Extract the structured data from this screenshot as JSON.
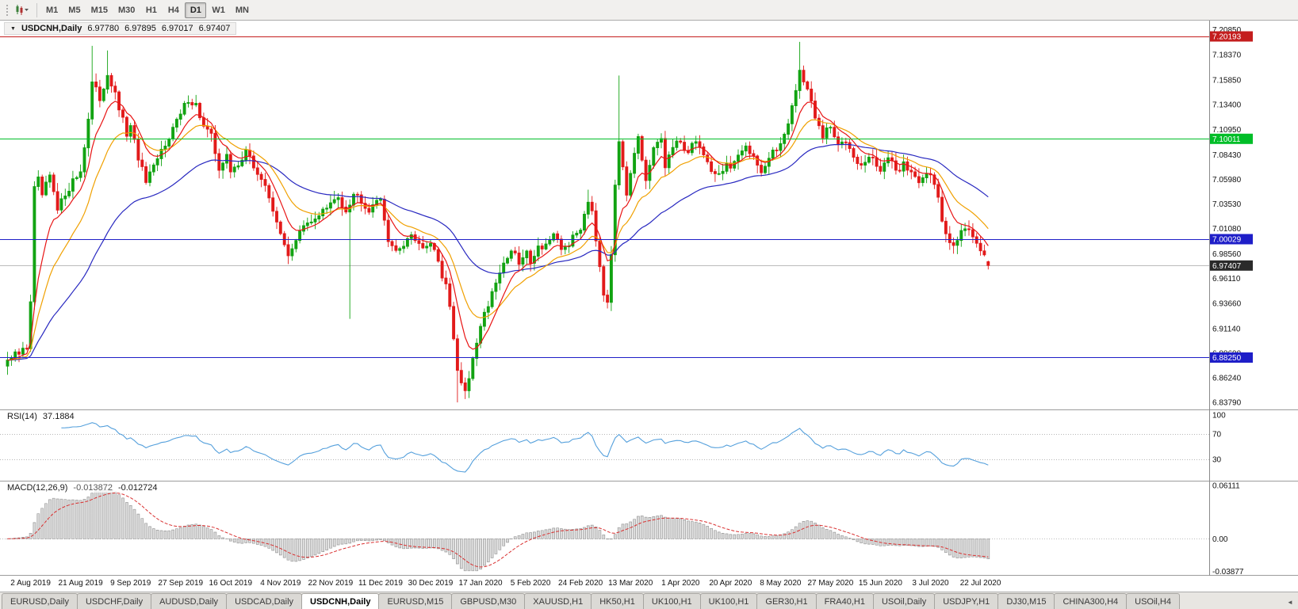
{
  "toolbar": {
    "timeframes": [
      {
        "label": "M1",
        "active": false
      },
      {
        "label": "M5",
        "active": false
      },
      {
        "label": "M15",
        "active": false
      },
      {
        "label": "M30",
        "active": false
      },
      {
        "label": "H1",
        "active": false
      },
      {
        "label": "H4",
        "active": false
      },
      {
        "label": "D1",
        "active": true
      },
      {
        "label": "W1",
        "active": false
      },
      {
        "label": "MN",
        "active": false
      }
    ]
  },
  "chart_header": {
    "dropdown_glyph": "▼",
    "symbol_label": "USDCNH,Daily",
    "open": "6.97780",
    "high": "6.97895",
    "low": "6.97017",
    "close": "6.97407"
  },
  "price_axis_labels": [
    "7.20850",
    "7.18370",
    "7.15850",
    "7.13400",
    "7.10950",
    "7.08430",
    "7.05980",
    "7.03530",
    "7.01080",
    "6.98560",
    "6.96110",
    "6.93660",
    "6.91140",
    "6.88690",
    "6.86240",
    "6.83790"
  ],
  "hlines": [
    {
      "value": 7.20193,
      "label": "7.20193",
      "color": "#C41E1E"
    },
    {
      "value": 7.10011,
      "label": "7.10011",
      "color": "#00BE28"
    },
    {
      "value": 7.00029,
      "label": "7.00029",
      "color": "#1E1EC8"
    },
    {
      "value": 6.8825,
      "label": "6.88250",
      "color": "#1E1EC8"
    }
  ],
  "bid": {
    "value": 6.97407,
    "label": "6.97407"
  },
  "rsi_panel": {
    "name": "RSI(14)",
    "value": "37.1884",
    "levels": [
      {
        "label": "100",
        "value": 100,
        "line": false
      },
      {
        "label": "70",
        "value": 70,
        "line": true
      },
      {
        "label": "30",
        "value": 30,
        "line": true
      }
    ]
  },
  "macd_panel": {
    "name": "MACD(12,26,9)",
    "main_value": "-0.013872",
    "signal_value": "-0.012724",
    "levels": [
      {
        "label": "0.06111",
        "value": 0.06111
      },
      {
        "label": "0.00",
        "value": 0.0
      },
      {
        "label": "-0.03877",
        "value": -0.03877
      }
    ]
  },
  "date_axis": [
    "2 Aug 2019",
    "21 Aug 2019",
    "9 Sep 2019",
    "27 Sep 2019",
    "16 Oct 2019",
    "4 Nov 2019",
    "22 Nov 2019",
    "11 Dec 2019",
    "30 Dec 2019",
    "17 Jan 2020",
    "5 Feb 2020",
    "24 Feb 2020",
    "13 Mar 2020",
    "1 Apr 2020",
    "20 Apr 2020",
    "8 May 2020",
    "27 May 2020",
    "15 Jun 2020",
    "3 Jul 2020",
    "22 Jul 2020"
  ],
  "tabbar": {
    "scroll_left_glyph": "◄",
    "tabs": [
      {
        "label": "EURUSD,Daily",
        "active": false
      },
      {
        "label": "USDCHF,Daily",
        "active": false
      },
      {
        "label": "AUDUSD,Daily",
        "active": false
      },
      {
        "label": "USDCAD,Daily",
        "active": false
      },
      {
        "label": "USDCNH,Daily",
        "active": true
      },
      {
        "label": "EURUSD,M15",
        "active": false
      },
      {
        "label": "GBPUSD,M30",
        "active": false
      },
      {
        "label": "XAUUSD,H1",
        "active": false
      },
      {
        "label": "HK50,H1",
        "active": false
      },
      {
        "label": "UK100,H1",
        "active": false
      },
      {
        "label": "UK100,H1",
        "active": false
      },
      {
        "label": "GER30,H1",
        "active": false
      },
      {
        "label": "FRA40,H1",
        "active": false
      },
      {
        "label": "USOil,Daily",
        "active": false
      },
      {
        "label": "USDJPY,H1",
        "active": false
      },
      {
        "label": "DJ30,M15",
        "active": false
      },
      {
        "label": "CHINA300,H4",
        "active": false
      },
      {
        "label": "USOil,H4",
        "active": false
      }
    ]
  },
  "colors": {
    "candle_up": "#12A312",
    "candle_down": "#E21B1B",
    "rsi_line": "#55A0DC",
    "macd_hist_fill": "#DCDCDC",
    "macd_hist_stroke": "#9A9A9A",
    "macd_signal": "#D93030",
    "bid_line": "#BBBBBB",
    "bid_badge": "#2A2A2A",
    "background": "#FFFFFF"
  },
  "chart_data": {
    "type": "candlestick",
    "title": "USDCNH,Daily",
    "symbol": "USDCNH",
    "period": "Daily",
    "n_candles": 256,
    "price_min": 6.8309,
    "price_max": 7.2177,
    "x_tick_labels": [
      "2 Aug 2019",
      "21 Aug 2019",
      "9 Sep 2019",
      "27 Sep 2019",
      "16 Oct 2019",
      "4 Nov 2019",
      "22 Nov 2019",
      "11 Dec 2019",
      "30 Dec 2019",
      "17 Jan 2020",
      "5 Feb 2020",
      "24 Feb 2020",
      "13 Mar 2020",
      "1 Apr 2020",
      "20 Apr 2020",
      "8 May 2020",
      "27 May 2020",
      "15 Jun 2020",
      "3 Jul 2020",
      "22 Jul 2020"
    ],
    "y_tick_labels": [
      "7.20850",
      "7.18370",
      "7.15850",
      "7.13400",
      "7.10950",
      "7.08430",
      "7.05980",
      "7.03530",
      "7.01080",
      "6.98560",
      "6.96110",
      "6.93660",
      "6.91140",
      "6.88690",
      "6.86240",
      "6.83790"
    ],
    "last": {
      "open": 6.9778,
      "high": 6.97895,
      "low": 6.97017,
      "close": 6.97407
    },
    "close_anchors": [
      [
        0,
        6.88
      ],
      [
        3,
        6.886
      ],
      [
        5,
        6.893
      ],
      [
        6,
        6.94
      ],
      [
        7,
        7.05
      ],
      [
        8,
        7.058
      ],
      [
        9,
        7.044
      ],
      [
        11,
        7.062
      ],
      [
        13,
        7.028
      ],
      [
        15,
        7.046
      ],
      [
        17,
        7.058
      ],
      [
        19,
        7.068
      ],
      [
        21,
        7.12
      ],
      [
        22,
        7.155
      ],
      [
        24,
        7.14
      ],
      [
        26,
        7.165
      ],
      [
        27,
        7.155
      ],
      [
        29,
        7.13
      ],
      [
        31,
        7.105
      ],
      [
        32,
        7.11
      ],
      [
        34,
        7.082
      ],
      [
        36,
        7.056
      ],
      [
        38,
        7.07
      ],
      [
        40,
        7.088
      ],
      [
        42,
        7.104
      ],
      [
        45,
        7.124
      ],
      [
        47,
        7.14
      ],
      [
        49,
        7.134
      ],
      [
        51,
        7.112
      ],
      [
        53,
        7.102
      ],
      [
        55,
        7.072
      ],
      [
        57,
        7.082
      ],
      [
        58,
        7.066
      ],
      [
        60,
        7.076
      ],
      [
        62,
        7.088
      ],
      [
        64,
        7.072
      ],
      [
        66,
        7.06
      ],
      [
        68,
        7.042
      ],
      [
        70,
        7.02
      ],
      [
        71,
        7.002
      ],
      [
        73,
        6.986
      ],
      [
        75,
        7.0
      ],
      [
        77,
        7.012
      ],
      [
        79,
        7.016
      ],
      [
        81,
        7.026
      ],
      [
        84,
        7.034
      ],
      [
        86,
        7.042
      ],
      [
        88,
        7.03
      ],
      [
        90,
        7.046
      ],
      [
        92,
        7.04
      ],
      [
        94,
        7.03
      ],
      [
        96,
        7.042
      ],
      [
        97,
        7.036
      ],
      [
        99,
        7.002
      ],
      [
        101,
        6.986
      ],
      [
        103,
        6.996
      ],
      [
        105,
        7.006
      ],
      [
        107,
        6.996
      ],
      [
        109,
        6.99
      ],
      [
        110,
        6.996
      ],
      [
        112,
        6.976
      ],
      [
        114,
        6.955
      ],
      [
        115,
        6.93
      ],
      [
        116,
        6.9
      ],
      [
        117,
        6.868
      ],
      [
        118,
        6.856
      ],
      [
        119,
        6.85
      ],
      [
        120,
        6.858
      ],
      [
        121,
        6.882
      ],
      [
        123,
        6.916
      ],
      [
        125,
        6.936
      ],
      [
        127,
        6.96
      ],
      [
        129,
        6.976
      ],
      [
        131,
        6.99
      ],
      [
        133,
        6.976
      ],
      [
        135,
        6.986
      ],
      [
        136,
        6.98
      ],
      [
        138,
        6.992
      ],
      [
        140,
        6.996
      ],
      [
        142,
        7.002
      ],
      [
        144,
        6.99
      ],
      [
        146,
        6.996
      ],
      [
        148,
        7.006
      ],
      [
        149,
        7.012
      ],
      [
        151,
        7.04
      ],
      [
        152,
        7.03
      ],
      [
        154,
        6.975
      ],
      [
        155,
        6.948
      ],
      [
        156,
        6.94
      ],
      [
        157,
        6.988
      ],
      [
        158,
        7.05
      ],
      [
        159,
        7.098
      ],
      [
        160,
        7.075
      ],
      [
        161,
        7.048
      ],
      [
        162,
        7.068
      ],
      [
        163,
        7.088
      ],
      [
        164,
        7.1
      ],
      [
        165,
        7.075
      ],
      [
        166,
        7.055
      ],
      [
        167,
        7.072
      ],
      [
        168,
        7.09
      ],
      [
        170,
        7.1
      ],
      [
        171,
        7.072
      ],
      [
        172,
        7.085
      ],
      [
        175,
        7.098
      ],
      [
        177,
        7.086
      ],
      [
        179,
        7.1
      ],
      [
        181,
        7.084
      ],
      [
        183,
        7.07
      ],
      [
        185,
        7.064
      ],
      [
        187,
        7.076
      ],
      [
        188,
        7.07
      ],
      [
        190,
        7.08
      ],
      [
        192,
        7.094
      ],
      [
        194,
        7.084
      ],
      [
        196,
        7.068
      ],
      [
        198,
        7.08
      ],
      [
        200,
        7.09
      ],
      [
        201,
        7.096
      ],
      [
        203,
        7.118
      ],
      [
        205,
        7.148
      ],
      [
        206,
        7.168
      ],
      [
        208,
        7.15
      ],
      [
        210,
        7.12
      ],
      [
        212,
        7.102
      ],
      [
        214,
        7.112
      ],
      [
        216,
        7.092
      ],
      [
        218,
        7.1
      ],
      [
        220,
        7.086
      ],
      [
        222,
        7.072
      ],
      [
        224,
        7.082
      ],
      [
        227,
        7.07
      ],
      [
        229,
        7.082
      ],
      [
        231,
        7.066
      ],
      [
        233,
        7.076
      ],
      [
        235,
        7.066
      ],
      [
        237,
        7.06
      ],
      [
        239,
        7.068
      ],
      [
        240,
        7.064
      ],
      [
        242,
        7.04
      ],
      [
        243,
        7.018
      ],
      [
        244,
        7.005
      ],
      [
        246,
        6.997
      ],
      [
        248,
        7.007
      ],
      [
        250,
        7.012
      ],
      [
        252,
        6.998
      ],
      [
        253,
        6.992
      ],
      [
        254,
        6.984
      ],
      [
        255,
        6.97407
      ]
    ],
    "wick_spikes": [
      {
        "i": 22,
        "high": 7.1926
      },
      {
        "i": 26,
        "high": 7.188
      },
      {
        "i": 89,
        "low": 6.921
      },
      {
        "i": 117,
        "low": 6.8379
      },
      {
        "i": 151,
        "high": 7.0495
      },
      {
        "i": 159,
        "high": 7.163
      },
      {
        "i": 206,
        "high": 7.1965
      }
    ],
    "moving_averages": [
      {
        "type": "ema",
        "period": 8,
        "color": "#E81414"
      },
      {
        "type": "ema",
        "period": 17,
        "color": "#F0A000"
      },
      {
        "type": "ema",
        "period": 45,
        "color": "#2828C0"
      }
    ],
    "indicators": {
      "rsi": {
        "period": 14,
        "current": 37.1884
      },
      "macd": {
        "fast": 12,
        "slow": 26,
        "signal": 9,
        "current": -0.013872,
        "signal_current": -0.012724
      }
    }
  }
}
